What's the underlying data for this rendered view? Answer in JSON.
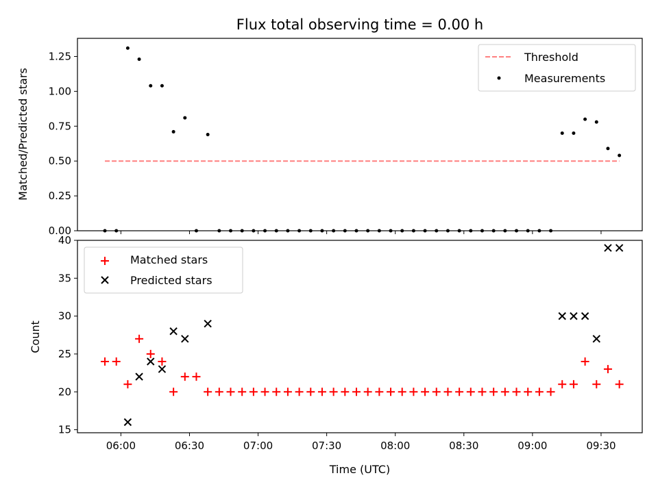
{
  "figure": {
    "title": "Flux total observing time = 0.00 h"
  },
  "colors": {
    "threshold": "#ff7f7f",
    "measurement": "#000000",
    "matched": "#ff0000",
    "predicted": "#000000"
  },
  "chart_data": [
    {
      "type": "scatter",
      "panel": "top",
      "ylabel": "Matched/Predicted stars",
      "ylim": [
        0,
        1.38
      ],
      "yticks": [
        0,
        0.25,
        0.5,
        0.75,
        1.0,
        1.25
      ],
      "ytick_labels": [
        "0.00",
        "0.25",
        "0.50",
        "0.75",
        "1.00",
        "1.25"
      ],
      "legend": {
        "placement": "top-right",
        "entries": [
          "Threshold",
          "Measurements"
        ]
      },
      "threshold": {
        "name": "Threshold",
        "value": 0.5,
        "x_start": "05:53",
        "x_end": "09:38",
        "style": "dashed"
      },
      "series": [
        {
          "name": "Measurements",
          "marker": "dot",
          "x": [
            "05:53",
            "05:58",
            "06:03",
            "06:08",
            "06:13",
            "06:18",
            "06:23",
            "06:28",
            "06:33",
            "06:38",
            "06:43",
            "06:48",
            "06:53",
            "06:58",
            "07:03",
            "07:08",
            "07:13",
            "07:18",
            "07:23",
            "07:28",
            "07:33",
            "07:38",
            "07:43",
            "07:48",
            "07:53",
            "07:58",
            "08:03",
            "08:08",
            "08:13",
            "08:18",
            "08:23",
            "08:28",
            "08:33",
            "08:38",
            "08:43",
            "08:48",
            "08:53",
            "08:58",
            "09:03",
            "09:08",
            "09:13",
            "09:18",
            "09:23",
            "09:28",
            "09:33",
            "09:38"
          ],
          "y": [
            0,
            0,
            1.31,
            1.23,
            1.04,
            1.04,
            0.71,
            0.81,
            0,
            0.69,
            0,
            0,
            0,
            0,
            0,
            0,
            0,
            0,
            0,
            0,
            0,
            0,
            0,
            0,
            0,
            0,
            0,
            0,
            0,
            0,
            0,
            0,
            0,
            0,
            0,
            0,
            0,
            0,
            0,
            0,
            0.7,
            0.7,
            0.8,
            0.78,
            0.59,
            0.54
          ]
        }
      ]
    },
    {
      "type": "scatter",
      "panel": "bottom",
      "xlabel": "Time (UTC)",
      "ylabel": "Count",
      "ylim": [
        14.6,
        40.0
      ],
      "xlim": [
        "05:41",
        "09:48"
      ],
      "yticks": [
        15,
        20,
        25,
        30,
        35,
        40
      ],
      "xticks": [
        "06:00",
        "06:30",
        "07:00",
        "07:30",
        "08:00",
        "08:30",
        "09:00",
        "09:30"
      ],
      "legend": {
        "placement": "top-left",
        "entries": [
          "Matched stars",
          "Predicted stars"
        ]
      },
      "x": [
        "05:53",
        "05:58",
        "06:03",
        "06:08",
        "06:13",
        "06:18",
        "06:23",
        "06:28",
        "06:33",
        "06:38",
        "06:43",
        "06:48",
        "06:53",
        "06:58",
        "07:03",
        "07:08",
        "07:13",
        "07:18",
        "07:23",
        "07:28",
        "07:33",
        "07:38",
        "07:43",
        "07:48",
        "07:53",
        "07:58",
        "08:03",
        "08:08",
        "08:13",
        "08:18",
        "08:23",
        "08:28",
        "08:33",
        "08:38",
        "08:43",
        "08:48",
        "08:53",
        "08:58",
        "09:03",
        "09:08",
        "09:13",
        "09:18",
        "09:23",
        "09:28",
        "09:33",
        "09:38"
      ],
      "series": [
        {
          "name": "Matched stars",
          "marker": "plus",
          "values": [
            24,
            24,
            21,
            27,
            25,
            24,
            20,
            22,
            22,
            20,
            20,
            20,
            20,
            20,
            20,
            20,
            20,
            20,
            20,
            20,
            20,
            20,
            20,
            20,
            20,
            20,
            20,
            20,
            20,
            20,
            20,
            20,
            20,
            20,
            20,
            20,
            20,
            20,
            20,
            20,
            21,
            21,
            24,
            21,
            23,
            21
          ]
        },
        {
          "name": "Predicted stars",
          "marker": "x",
          "values": [
            null,
            null,
            16,
            22,
            24,
            23,
            28,
            27,
            null,
            29,
            null,
            null,
            null,
            null,
            null,
            null,
            null,
            null,
            null,
            null,
            null,
            null,
            null,
            null,
            null,
            null,
            null,
            null,
            null,
            null,
            null,
            null,
            null,
            null,
            null,
            null,
            null,
            null,
            null,
            null,
            30,
            30,
            30,
            27,
            39,
            39
          ]
        }
      ]
    }
  ]
}
